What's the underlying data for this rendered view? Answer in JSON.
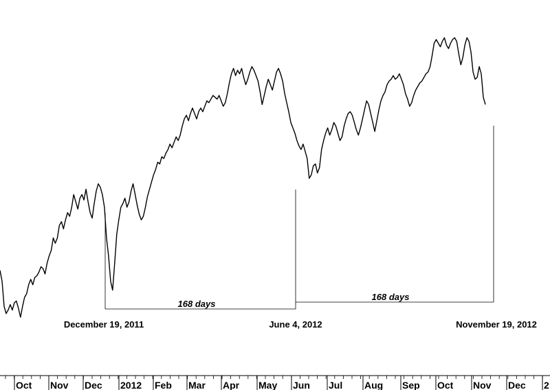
{
  "chart_data": {
    "type": "line",
    "title": "",
    "xlabel": "",
    "ylabel": "",
    "grid": false,
    "line_color": "#000000",
    "x_start": "2011-09-22",
    "x_end": "2012-11-19",
    "series": [
      {
        "values": [
          1.18,
          1.12,
          0.98,
          0.94,
          0.96,
          0.99,
          0.96,
          1.0,
          1.01,
          0.97,
          0.92,
          0.98,
          1.03,
          1.05,
          1.1,
          1.13,
          1.1,
          1.14,
          1.15,
          1.17,
          1.2,
          1.19,
          1.16,
          1.22,
          1.26,
          1.29,
          1.36,
          1.33,
          1.36,
          1.43,
          1.45,
          1.41,
          1.46,
          1.5,
          1.48,
          1.53,
          1.6,
          1.56,
          1.52,
          1.58,
          1.6,
          1.57,
          1.63,
          1.56,
          1.5,
          1.47,
          1.55,
          1.62,
          1.66,
          1.64,
          1.6,
          1.53,
          1.36,
          1.26,
          1.12,
          1.07,
          1.22,
          1.38,
          1.46,
          1.53,
          1.55,
          1.58,
          1.53,
          1.56,
          1.62,
          1.66,
          1.6,
          1.54,
          1.49,
          1.46,
          1.48,
          1.53,
          1.59,
          1.63,
          1.67,
          1.71,
          1.74,
          1.78,
          1.77,
          1.81,
          1.8,
          1.83,
          1.85,
          1.88,
          1.86,
          1.89,
          1.92,
          1.9,
          1.93,
          1.98,
          2.02,
          2.04,
          2.01,
          2.05,
          2.08,
          2.05,
          2.02,
          2.06,
          2.08,
          2.06,
          2.09,
          2.12,
          2.11,
          2.13,
          2.15,
          2.14,
          2.13,
          2.15,
          2.12,
          2.09,
          2.11,
          2.16,
          2.22,
          2.27,
          2.3,
          2.26,
          2.29,
          2.27,
          2.3,
          2.25,
          2.21,
          2.24,
          2.28,
          2.31,
          2.29,
          2.26,
          2.23,
          2.17,
          2.1,
          2.15,
          2.2,
          2.24,
          2.21,
          2.18,
          2.23,
          2.28,
          2.3,
          2.27,
          2.23,
          2.16,
          2.11,
          2.06,
          2.0,
          1.97,
          1.94,
          1.9,
          1.87,
          1.85,
          1.88,
          1.84,
          1.8,
          1.69,
          1.71,
          1.76,
          1.77,
          1.72,
          1.75,
          1.85,
          1.9,
          1.94,
          1.97,
          1.93,
          1.96,
          2.0,
          1.98,
          1.94,
          1.9,
          1.92,
          1.98,
          2.02,
          2.05,
          2.06,
          2.04,
          2.0,
          1.96,
          1.93,
          1.97,
          2.02,
          2.07,
          2.12,
          2.1,
          2.05,
          2.0,
          1.95,
          2.01,
          2.07,
          2.12,
          2.15,
          2.17,
          2.21,
          2.23,
          2.24,
          2.26,
          2.24,
          2.25,
          2.27,
          2.24,
          2.21,
          2.16,
          2.13,
          2.09,
          2.11,
          2.15,
          2.18,
          2.2,
          2.22,
          2.23,
          2.25,
          2.27,
          2.28,
          2.31,
          2.37,
          2.44,
          2.46,
          2.44,
          2.42,
          2.45,
          2.47,
          2.43,
          2.41,
          2.44,
          2.46,
          2.47,
          2.45,
          2.38,
          2.32,
          2.36,
          2.43,
          2.47,
          2.45,
          2.39,
          2.28,
          2.24,
          2.25,
          2.31,
          2.27,
          2.14,
          2.1
        ]
      }
    ],
    "x_ticks": [
      "Oct",
      "Nov",
      "Dec",
      "2012",
      "Feb",
      "Mar",
      "Apr",
      "May",
      "Jun",
      "Jul",
      "Aug",
      "Sep",
      "Oct",
      "Nov",
      "Dec",
      "2"
    ],
    "annotations": [
      {
        "date": "December 19, 2011",
        "label": "December 19, 2011"
      },
      {
        "date": "June 4, 2012",
        "label": "June 4, 2012"
      },
      {
        "date": "November 19, 2012",
        "label": "November 19, 2012"
      },
      {
        "label": "168 days",
        "from": "December 19, 2011",
        "to": "June 4, 2012"
      },
      {
        "label": "168 days",
        "from": "June 4, 2012",
        "to": "November 19, 2012"
      }
    ]
  }
}
